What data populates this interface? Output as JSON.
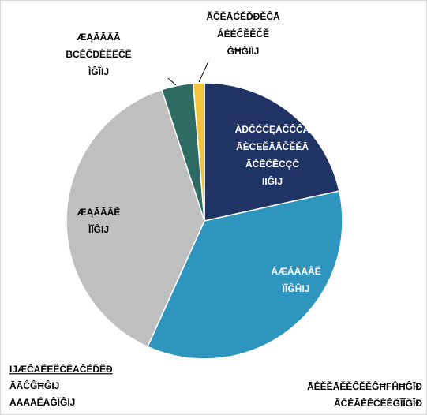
{
  "chart_data": {
    "type": "pie",
    "categories": [
      [
        "ÀĐĈĆĆĘĀČĈĈĀ",
        "ĀÈCEĚĀĀČĚĚĀ",
        "ĀĊĚĈĒCÇČ"
      ],
      [
        "ÁÆÁĀĀÂĚ"
      ],
      [
        "ÆĄĀĀÂĚ"
      ],
      [
        "ÆĄĀĀÂĀ",
        "BCÊČDÈĚĚČĚ"
      ],
      [
        "ĂČĚĀĆĚĎĐĚĈĀ",
        "ÁĖÉĈĚĚČĚ"
      ]
    ],
    "values": [
      21.5,
      35.2,
      38.2,
      3.7,
      1.3
    ],
    "value_labels": [
      "IIĜIJ",
      "ÏĨĜĤIJ",
      "ÌĨĜIJ",
      "ÌĜĨIJ",
      "ĜĦĜĨIJ"
    ],
    "colors": [
      "#1f3464",
      "#2e95bf",
      "#bfbfbf",
      "#2e6b62",
      "#f2c43d"
    ],
    "footnote_left": [
      "IJÆĈĀĚĒĚĊĚĀĈÉĎĚĐ",
      "ĀĀĈĜĦĜIJ",
      "ĀAĀĀÉĀĜĨĜIJ"
    ],
    "footnote_right": [
      "ĀÊĚĚĀĚĚĈĚĚĜĦFĤĦĜĪĐ",
      "ĂČĚĀĚĚĈĚĚĜĨĨĜĪĐ"
    ]
  }
}
